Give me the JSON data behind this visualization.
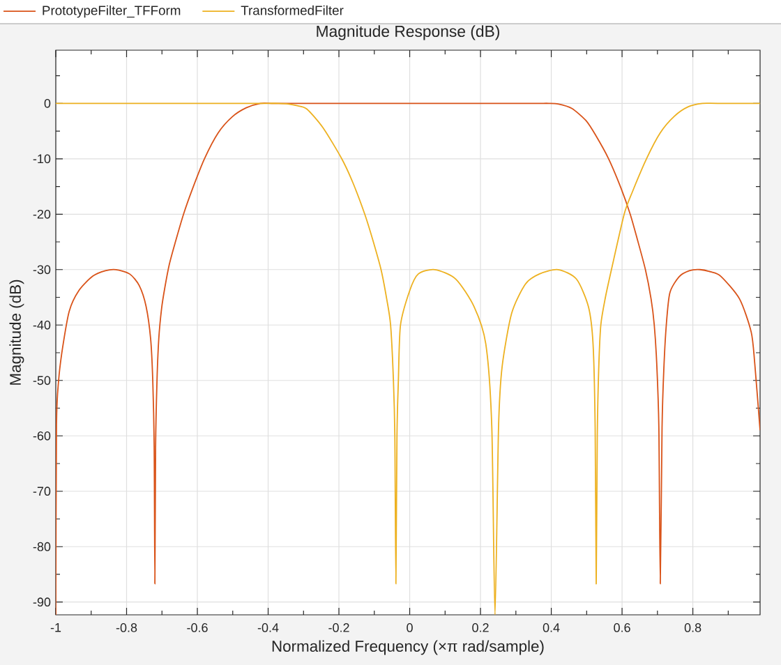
{
  "chart_data": {
    "type": "line",
    "title": "Magnitude Response (dB)",
    "xlabel": "Normalized Frequency (×π rad/sample)",
    "ylabel": "Magnitude (dB)",
    "xlim": [
      -1,
      0.99
    ],
    "ylim": [
      -92.3,
      9.6
    ],
    "xticks": [
      -1,
      {
        "value": -0.9,
        "label": null
      },
      -0.8,
      {
        "value": -0.7,
        "label": null
      },
      -0.6,
      {
        "value": -0.5,
        "label": null
      },
      -0.4,
      {
        "value": -0.3,
        "label": null
      },
      -0.2,
      {
        "value": -0.1,
        "label": null
      },
      0,
      {
        "value": 0.1,
        "label": null
      },
      0.2,
      {
        "value": 0.3,
        "label": null
      },
      0.4,
      {
        "value": 0.5,
        "label": null
      },
      0.6,
      {
        "value": 0.7,
        "label": null
      },
      0.8,
      {
        "value": 0.9,
        "label": null
      }
    ],
    "yticks": [
      -90,
      {
        "value": -85,
        "label": null
      },
      -80,
      {
        "value": -75,
        "label": null
      },
      -70,
      {
        "value": -65,
        "label": null
      },
      -60,
      {
        "value": -55,
        "label": null
      },
      -50,
      {
        "value": -45,
        "label": null
      },
      -40,
      {
        "value": -35,
        "label": null
      },
      -30,
      {
        "value": -25,
        "label": null
      },
      -20,
      {
        "value": -15,
        "label": null
      },
      -10,
      {
        "value": -5,
        "label": null
      },
      0,
      {
        "value": 5,
        "label": null
      }
    ],
    "grid": true,
    "legend": "top",
    "marker": "none",
    "line_style": "solid",
    "series": [
      {
        "name": "PrototypeFilter_TFForm",
        "color": "#d95319",
        "x": [
          -1,
          -0.998,
          -0.992,
          -0.981,
          -0.962,
          -0.935,
          -0.896,
          -0.86,
          -0.83,
          -0.791,
          -0.764,
          -0.745,
          -0.732,
          -0.726,
          -0.722,
          -0.72,
          -0.718,
          -0.714,
          -0.709,
          -0.701,
          -0.692,
          -0.679,
          -0.662,
          -0.639,
          -0.613,
          -0.58,
          -0.541,
          -0.501,
          -0.462,
          -0.422,
          -0.39,
          -0.35,
          -0.3,
          0,
          0.3,
          0.35,
          0.372,
          0.393,
          0.419,
          0.458,
          0.498,
          0.524,
          0.562,
          0.597,
          0.623,
          0.643,
          0.666,
          0.682,
          0.691,
          0.698,
          0.704,
          0.708,
          0.713,
          0.718,
          0.725,
          0.735,
          0.761,
          0.79,
          0.82,
          0.85,
          0.879,
          0.932,
          0.965,
          0.975,
          0.99
        ],
        "values": [
          -92.3,
          -58,
          -50,
          -44.2,
          -37.5,
          -33.8,
          -31.2,
          -30.2,
          -30,
          -30.8,
          -32.9,
          -36.6,
          -42.5,
          -50,
          -62,
          -86.7,
          -62,
          -50,
          -42.5,
          -37,
          -33.3,
          -29,
          -25,
          -20,
          -15.3,
          -10,
          -5.3,
          -2.4,
          -0.8,
          0,
          0,
          0,
          0,
          0,
          0,
          0,
          0,
          0,
          -0.1,
          -0.9,
          -3.1,
          -5.6,
          -10,
          -15.3,
          -20,
          -24.5,
          -30,
          -35.3,
          -40,
          -47,
          -58.5,
          -86.7,
          -58.5,
          -48,
          -40,
          -34.2,
          -31.3,
          -30.2,
          -30,
          -30.4,
          -31.2,
          -35.3,
          -41.3,
          -47,
          -59
        ]
      },
      {
        "name": "TransformedFilter",
        "color": "#edb120",
        "x": [
          -1,
          -0.8,
          -0.6,
          -0.45,
          -0.4,
          -0.37,
          -0.344,
          -0.32,
          -0.291,
          -0.245,
          -0.192,
          -0.16,
          -0.127,
          -0.105,
          -0.081,
          -0.065,
          -0.054,
          -0.046,
          -0.042,
          -0.039,
          -0.036,
          -0.032,
          -0.026,
          0,
          0.024,
          0.071,
          0.13,
          0.182,
          0.215,
          0.232,
          0.241,
          0.251,
          0.261,
          0.288,
          0.327,
          0.366,
          0.419,
          0.471,
          0.505,
          0.518,
          0.524,
          0.527,
          0.53,
          0.534,
          0.54,
          0.553,
          0.57,
          0.606,
          0.629,
          0.669,
          0.708,
          0.748,
          0.787,
          0.827,
          0.87,
          0.99
        ],
        "values": [
          0,
          0,
          0,
          0,
          0,
          0,
          -0.1,
          -0.4,
          -1,
          -4.4,
          -10,
          -14.4,
          -20,
          -24.5,
          -30,
          -35.3,
          -40,
          -50,
          -60,
          -86.7,
          -60,
          -50,
          -40,
          -33.8,
          -30.8,
          -30,
          -31.7,
          -36.7,
          -43.4,
          -58.5,
          -92.3,
          -58.5,
          -47.6,
          -37.9,
          -32.6,
          -30.8,
          -30,
          -31.7,
          -36.7,
          -43.4,
          -58.5,
          -86.7,
          -60,
          -48,
          -40,
          -35,
          -30,
          -20,
          -16,
          -10,
          -5.3,
          -2.3,
          -0.6,
          0,
          0,
          0
        ]
      }
    ]
  }
}
